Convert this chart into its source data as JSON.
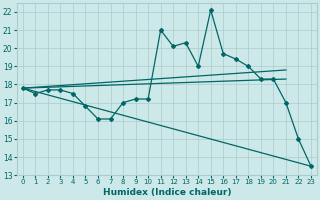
{
  "xlabel": "Humidex (Indice chaleur)",
  "xlim": [
    -0.5,
    23.5
  ],
  "ylim": [
    13,
    22.5
  ],
  "yticks": [
    13,
    14,
    15,
    16,
    17,
    18,
    19,
    20,
    21,
    22
  ],
  "xticks": [
    0,
    1,
    2,
    3,
    4,
    5,
    6,
    7,
    8,
    9,
    10,
    11,
    12,
    13,
    14,
    15,
    16,
    17,
    18,
    19,
    20,
    21,
    22,
    23
  ],
  "bg_color": "#cde8e8",
  "grid_color": "#aacccc",
  "line_color": "#006666",
  "series": {
    "main_curve": {
      "x": [
        0,
        1,
        2,
        3,
        4,
        5,
        6,
        7,
        8,
        9,
        10,
        11,
        12,
        13,
        14,
        15,
        16,
        17,
        18,
        19,
        20,
        21,
        22,
        23
      ],
      "y": [
        17.8,
        17.5,
        17.7,
        17.7,
        17.5,
        16.8,
        16.1,
        16.1,
        17.0,
        17.2,
        17.2,
        21.0,
        20.1,
        20.3,
        19.0,
        22.1,
        19.7,
        19.4,
        19.0,
        18.3,
        18.3,
        17.0,
        15.0,
        13.5
      ],
      "marker": "D",
      "markersize": 2.0,
      "linewidth": 0.9
    },
    "upper_line": {
      "x": [
        0,
        21
      ],
      "y": [
        17.8,
        18.8
      ],
      "linewidth": 0.9
    },
    "middle_line": {
      "x": [
        0,
        21
      ],
      "y": [
        17.8,
        18.3
      ],
      "linewidth": 0.9
    },
    "lower_line": {
      "x": [
        0,
        23
      ],
      "y": [
        17.8,
        13.5
      ],
      "linewidth": 0.9
    }
  }
}
